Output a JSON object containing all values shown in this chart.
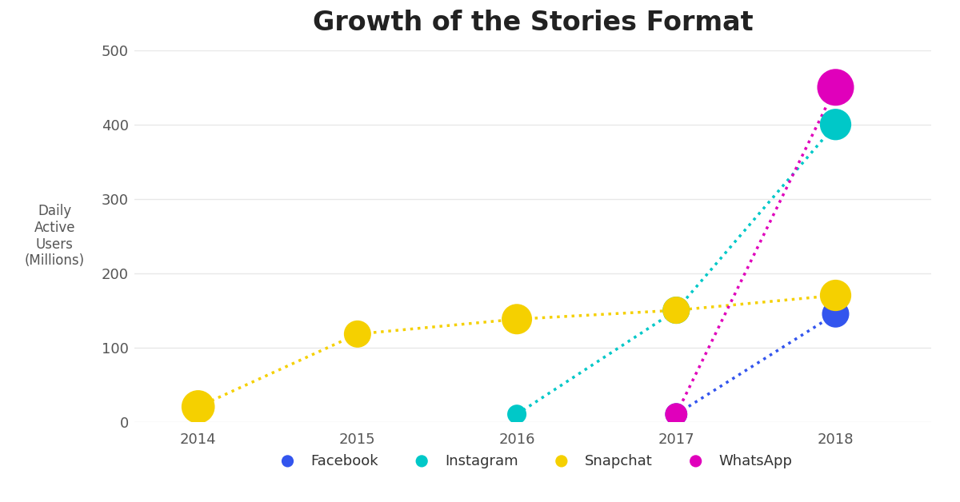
{
  "title": "Growth of the Stories Format",
  "ylabel": "Daily\nActive\nUsers\n(Millions)",
  "background_color": "#ffffff",
  "series": {
    "Facebook": {
      "x": [
        2017,
        2018
      ],
      "y": [
        10,
        145
      ],
      "color": "#3355ee",
      "marker_sizes": [
        80,
        120
      ]
    },
    "Instagram": {
      "x": [
        2016,
        2017,
        2018
      ],
      "y": [
        10,
        150,
        400
      ],
      "color": "#00c8c8",
      "marker_sizes": [
        60,
        120,
        160
      ]
    },
    "Snapchat": {
      "x": [
        2014,
        2015,
        2016,
        2017,
        2018
      ],
      "y": [
        20,
        118,
        138,
        150,
        170
      ],
      "color": "#f5d000",
      "marker_sizes": [
        180,
        120,
        150,
        120,
        160
      ]
    },
    "WhatsApp": {
      "x": [
        2017,
        2018
      ],
      "y": [
        10,
        450
      ],
      "color": "#e000bb",
      "marker_sizes": [
        80,
        220
      ]
    }
  },
  "ylim": [
    0,
    500
  ],
  "yticks": [
    0,
    100,
    200,
    300,
    400,
    500
  ],
  "xticks": [
    2014,
    2015,
    2016,
    2017,
    2018
  ],
  "xlim": [
    2013.6,
    2018.6
  ],
  "legend_order": [
    "Facebook",
    "Instagram",
    "Snapchat",
    "WhatsApp"
  ],
  "grid_color": "#e8e8e8",
  "title_fontsize": 24,
  "label_fontsize": 12,
  "tick_fontsize": 13,
  "legend_fontsize": 13,
  "dot_linewidth": 2.5
}
